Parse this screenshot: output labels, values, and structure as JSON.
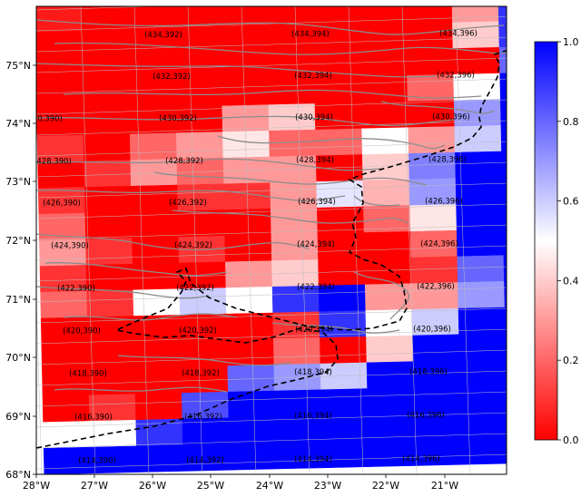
{
  "map": {
    "lon_ticks": [
      "28°W",
      "27°W",
      "26°W",
      "25°W",
      "24°W",
      "23°W",
      "22°W",
      "21°W"
    ],
    "lat_ticks": [
      "68°N",
      "69°N",
      "70°N",
      "71°N",
      "72°N",
      "73°N",
      "74°N",
      "75°N"
    ],
    "colormap": {
      "low": "#ff0000",
      "mid": "#ffffff",
      "high": "#0000ff"
    },
    "colorbar": {
      "min": 0.0,
      "max": 1.0,
      "ticks": [
        "0.0",
        "0.2",
        "0.4",
        "0.6",
        "0.8",
        "1.0"
      ]
    },
    "coastline_color": "#8c8c8c",
    "boundary_color": "#000000",
    "labeled_cells": [
      {
        "label": "(434,392)"
      },
      {
        "label": "(434,394)"
      },
      {
        "label": "(434,396)"
      },
      {
        "label": "(432,392)"
      },
      {
        "label": "(432,394)"
      },
      {
        "label": "(432,396)"
      },
      {
        "label": "(430,390)"
      },
      {
        "label": "(430,392)"
      },
      {
        "label": "(430,394)"
      },
      {
        "label": "(430,396)"
      },
      {
        "label": "(428,390)"
      },
      {
        "label": "(428,392)"
      },
      {
        "label": "(428,394)"
      },
      {
        "label": "(428,396)"
      },
      {
        "label": "(426,390)"
      },
      {
        "label": "(426,392)"
      },
      {
        "label": "(426,394)"
      },
      {
        "label": "(426,396)"
      },
      {
        "label": "(424,390)"
      },
      {
        "label": "(424,392)"
      },
      {
        "label": "(424,394)"
      },
      {
        "label": "(424,396)"
      },
      {
        "label": "(422,390)"
      },
      {
        "label": "(422,392)"
      },
      {
        "label": "(422,394)"
      },
      {
        "label": "(422,396)"
      },
      {
        "label": "(420,390)"
      },
      {
        "label": "(420,392)"
      },
      {
        "label": "(420,394)"
      },
      {
        "label": "(420,396)"
      },
      {
        "label": "(418,390)"
      },
      {
        "label": "(418,392)"
      },
      {
        "label": "(418,394)"
      },
      {
        "label": "(418,396)"
      },
      {
        "label": "(416,390)"
      },
      {
        "label": "(416,392)"
      },
      {
        "label": "(416,394)"
      },
      {
        "label": "(416,396)"
      },
      {
        "label": "(414,390)"
      },
      {
        "label": "(414,392)"
      },
      {
        "label": "(414,394)"
      },
      {
        "label": "(414,396)"
      }
    ],
    "cell_values": [
      [
        0.05,
        0.0,
        0.0,
        0.0,
        0.0,
        0.0,
        0.0,
        0.0,
        0.0,
        0.3,
        0.9
      ],
      [
        0.0,
        0.0,
        0.0,
        0.0,
        0.0,
        0.0,
        0.0,
        0.0,
        0.0,
        0.4,
        0.9
      ],
      [
        0.0,
        0.0,
        0.0,
        0.0,
        0.0,
        0.0,
        0.0,
        0.0,
        0.0,
        0.0,
        0.8
      ],
      [
        0.0,
        0.0,
        0.0,
        0.0,
        0.0,
        0.0,
        0.0,
        0.0,
        0.2,
        0.5,
        1.0
      ],
      [
        0.0,
        0.0,
        0.0,
        0.0,
        0.3,
        0.4,
        0.0,
        0.0,
        0.0,
        0.7,
        1.0
      ],
      [
        0.1,
        0.0,
        0.2,
        0.3,
        0.45,
        0.2,
        0.2,
        0.5,
        0.3,
        0.6,
        1.0
      ],
      [
        0.0,
        0.1,
        0.3,
        0.2,
        0.3,
        0.3,
        0.0,
        0.4,
        0.75,
        1.0,
        1.0
      ],
      [
        0.1,
        0.0,
        0.0,
        0.1,
        0.1,
        0.3,
        0.55,
        0.35,
        0.7,
        1.0,
        1.0
      ],
      [
        0.2,
        0.0,
        0.0,
        0.0,
        0.0,
        0.3,
        0.0,
        0.2,
        0.45,
        1.0,
        1.0
      ],
      [
        0.3,
        0.1,
        0.0,
        0.1,
        0.0,
        0.3,
        0.0,
        0.0,
        0.2,
        1.0,
        1.0
      ],
      [
        0.1,
        0.0,
        0.0,
        0.0,
        0.3,
        0.4,
        0.0,
        0.0,
        0.1,
        0.8,
        1.0
      ],
      [
        0.2,
        0.1,
        0.5,
        0.6,
        0.5,
        0.9,
        1.0,
        0.3,
        0.3,
        0.7,
        1.0
      ],
      [
        0.0,
        0.0,
        0.0,
        0.0,
        0.0,
        0.1,
        0.9,
        0.5,
        0.6,
        1.0,
        1.0
      ],
      [
        0.0,
        0.0,
        0.0,
        0.0,
        0.0,
        0.2,
        0.0,
        0.4,
        1.0,
        1.0,
        1.0
      ],
      [
        0.0,
        0.0,
        0.0,
        0.0,
        0.8,
        0.7,
        0.6,
        1.0,
        1.0,
        1.0,
        1.0
      ],
      [
        0.0,
        0.1,
        0.0,
        0.85,
        1.0,
        1.0,
        1.0,
        1.0,
        1.0,
        1.0,
        1.0
      ],
      [
        0.5,
        0.5,
        0.9,
        1.0,
        1.0,
        1.0,
        1.0,
        1.0,
        1.0,
        1.0,
        1.0
      ],
      [
        1.0,
        1.0,
        1.0,
        1.0,
        1.0,
        1.0,
        1.0,
        1.0,
        1.0,
        1.0,
        1.0
      ]
    ]
  }
}
